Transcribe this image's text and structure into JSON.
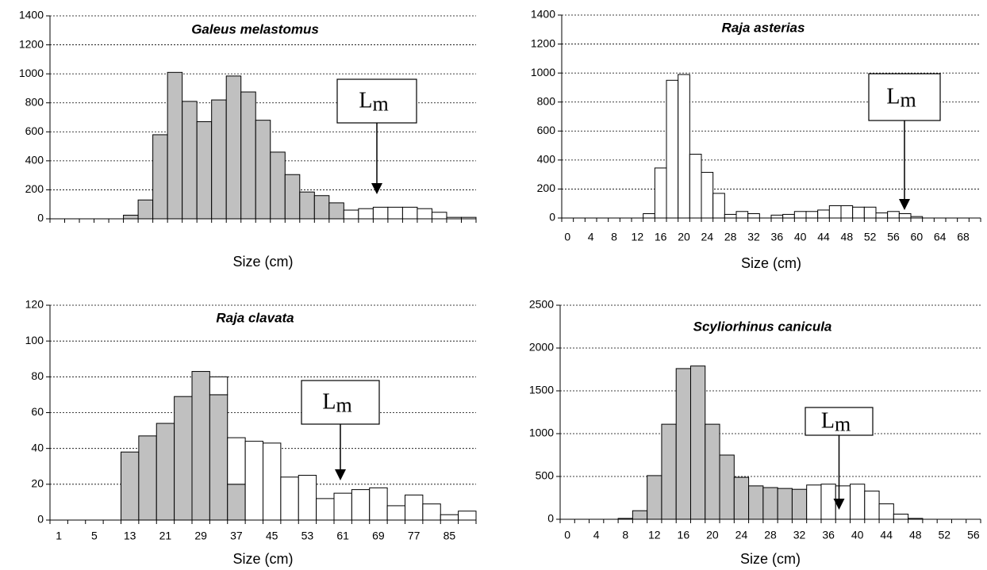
{
  "chart_data": [
    {
      "type": "bar",
      "title": "Galeus melastomus",
      "x_label": "Size (cm)",
      "categories": [
        null,
        null,
        null,
        null,
        null,
        null,
        null,
        null,
        null,
        null,
        null,
        null,
        null,
        null,
        null,
        null,
        null,
        null,
        null,
        null,
        null,
        null,
        null,
        null,
        null,
        null,
        null,
        null,
        null
      ],
      "series": [
        {
          "color": "#c0c0c0",
          "values": [
            null,
            null,
            null,
            null,
            null,
            25,
            130,
            580,
            1010,
            810,
            670,
            820,
            985,
            875,
            680,
            460,
            305,
            185,
            160,
            110,
            null,
            null,
            null,
            null,
            null,
            null,
            null,
            null,
            null
          ]
        },
        {
          "color": "#ffffff",
          "values": [
            null,
            null,
            null,
            null,
            null,
            null,
            null,
            null,
            null,
            null,
            null,
            null,
            null,
            null,
            null,
            null,
            null,
            null,
            null,
            null,
            60,
            70,
            80,
            80,
            80,
            70,
            45,
            10,
            10
          ]
        }
      ],
      "ylim": [
        0,
        1400
      ],
      "yticks": [
        0,
        200,
        400,
        600,
        800,
        1000,
        1200,
        1400
      ],
      "grid": true,
      "annotation": "L",
      "annotation_sub": "m"
    },
    {
      "type": "bar",
      "title": "Raja asterias",
      "x_label": "Size (cm)",
      "categories": [
        "0",
        null,
        "4",
        null,
        "8",
        null,
        "12",
        null,
        "16",
        null,
        "20",
        null,
        "24",
        null,
        "28",
        null,
        "32",
        null,
        "36",
        null,
        "40",
        null,
        "44",
        null,
        "48",
        null,
        "52",
        null,
        "56",
        null,
        "60",
        null,
        "64",
        null,
        "68",
        null
      ],
      "series": [
        {
          "color": "#ffffff",
          "values": [
            0,
            0,
            0,
            0,
            0,
            0,
            0,
            30,
            345,
            950,
            990,
            440,
            315,
            170,
            25,
            45,
            30,
            0,
            20,
            25,
            45,
            45,
            55,
            85,
            85,
            75,
            75,
            35,
            45,
            30,
            10,
            0,
            0,
            0,
            0,
            0
          ]
        }
      ],
      "ylim": [
        0,
        1400
      ],
      "yticks": [
        0,
        200,
        400,
        600,
        800,
        1000,
        1200,
        1400
      ],
      "grid": true,
      "annotation": "L",
      "annotation_sub": "m"
    },
    {
      "type": "bar",
      "title": "Raja clavata",
      "x_label": "Size (cm)",
      "categories": [
        "1",
        null,
        "5",
        null,
        "13",
        null,
        "21",
        null,
        "29",
        null,
        "37",
        null,
        "45",
        null,
        "53",
        null,
        "61",
        null,
        "69",
        null,
        "77",
        null,
        "85",
        null
      ],
      "series": [
        {
          "color": "#c0c0c0",
          "values": [
            null,
            null,
            null,
            null,
            38,
            47,
            54,
            69,
            83,
            70,
            20,
            null,
            null,
            null,
            null,
            null,
            null,
            null,
            null,
            null,
            null,
            null,
            null,
            null
          ]
        },
        {
          "color": "#ffffff",
          "values": [
            null,
            null,
            null,
            null,
            null,
            null,
            null,
            null,
            null,
            10,
            26,
            44,
            43,
            24,
            25,
            12,
            15,
            17,
            18,
            8,
            14,
            9,
            3,
            5
          ]
        }
      ],
      "ylim": [
        0,
        120
      ],
      "yticks": [
        0,
        20,
        40,
        60,
        80,
        100,
        120
      ],
      "grid": true,
      "annotation": "L",
      "annotation_sub": "m"
    },
    {
      "type": "bar",
      "title": "Scyliorhinus canicula",
      "x_label": "Size (cm)",
      "categories": [
        "0",
        null,
        "4",
        null,
        "8",
        null,
        "12",
        null,
        "16",
        null,
        "20",
        null,
        "24",
        null,
        "28",
        null,
        "32",
        null,
        "36",
        null,
        "40",
        null,
        "44",
        null,
        "48",
        null,
        "52",
        null,
        "56"
      ],
      "series": [
        {
          "color": "#c0c0c0",
          "values": [
            null,
            null,
            null,
            null,
            10,
            100,
            510,
            1110,
            1760,
            1790,
            1110,
            750,
            490,
            390,
            370,
            360,
            350,
            null,
            null,
            null,
            null,
            null,
            null,
            null,
            null,
            null,
            null,
            null,
            null
          ]
        },
        {
          "color": "#ffffff",
          "values": [
            null,
            null,
            null,
            null,
            null,
            null,
            null,
            null,
            null,
            null,
            null,
            null,
            null,
            null,
            null,
            null,
            null,
            400,
            410,
            390,
            410,
            330,
            180,
            60,
            10,
            null,
            null,
            null,
            null
          ]
        }
      ],
      "ylim": [
        0,
        2500
      ],
      "yticks": [
        0,
        500,
        1000,
        1500,
        2000,
        2500
      ],
      "grid": true,
      "annotation": "L",
      "annotation_sub": "m"
    }
  ]
}
